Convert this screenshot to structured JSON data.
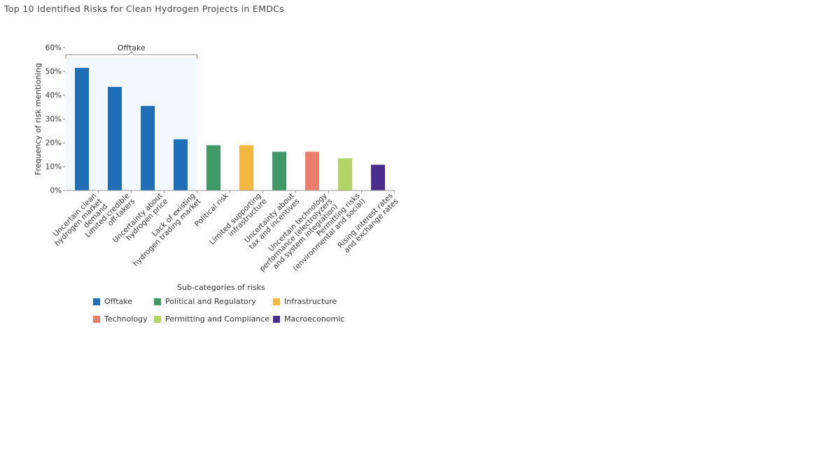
{
  "page": {
    "title": "Top 10 Identified Risks for Clean Hydrogen Projects in EMDCs"
  },
  "legend": {
    "title": "Sub-categories of risks",
    "items": [
      {
        "label": "Offtake",
        "color": "#1f6fb8"
      },
      {
        "label": "Political and Regulatory",
        "color": "#3f9a68"
      },
      {
        "label": "Infrastructure",
        "color": "#f0b840"
      },
      {
        "label": "Technology",
        "color": "#ea7e6c"
      },
      {
        "label": "Permitting and Compliance",
        "color": "#b5d466"
      },
      {
        "label": "Macroeconomic",
        "color": "#4b2e8c"
      }
    ]
  },
  "chart_data": {
    "type": "bar",
    "title": "Top 10 Identified Risks for Clean Hydrogen Projects in EMDCs",
    "ylabel": "Frequency of risk mentioning",
    "xlabel": "",
    "ylim": [
      0,
      60
    ],
    "yticks": [
      "0%",
      "10%",
      "20%",
      "30%",
      "40%",
      "50%",
      "60%"
    ],
    "categories": [
      [
        "Uncertain clean",
        "hydrogen market",
        "demand"
      ],
      [
        "Limited credible",
        "off-takers"
      ],
      [
        "Uncertainty about",
        "hydrogen price"
      ],
      [
        "Lack of existing",
        "hydrogen trading market"
      ],
      [
        "Political risk"
      ],
      [
        "Limited supporting",
        "infrastructure"
      ],
      [
        "Uncertainty about",
        "tax and incentives"
      ],
      [
        "Uncertain technology",
        "performance (electrolyzers",
        "and system integration)"
      ],
      [
        "Permitting risks",
        "(environmental and social)"
      ],
      [
        "Rising interest rates",
        "and exchange rates"
      ]
    ],
    "values": [
      51.5,
      43.5,
      35.5,
      21.5,
      19,
      19,
      16.3,
      16.3,
      13.5,
      10.8
    ],
    "bar_groups": [
      "Offtake",
      "Offtake",
      "Offtake",
      "Offtake",
      "Political and Regulatory",
      "Infrastructure",
      "Political and Regulatory",
      "Technology",
      "Permitting and Compliance",
      "Macroeconomic"
    ],
    "bracket": {
      "label": "Offtake",
      "from": 0,
      "to": 3
    },
    "grid": false,
    "legend_position": "bottom"
  }
}
